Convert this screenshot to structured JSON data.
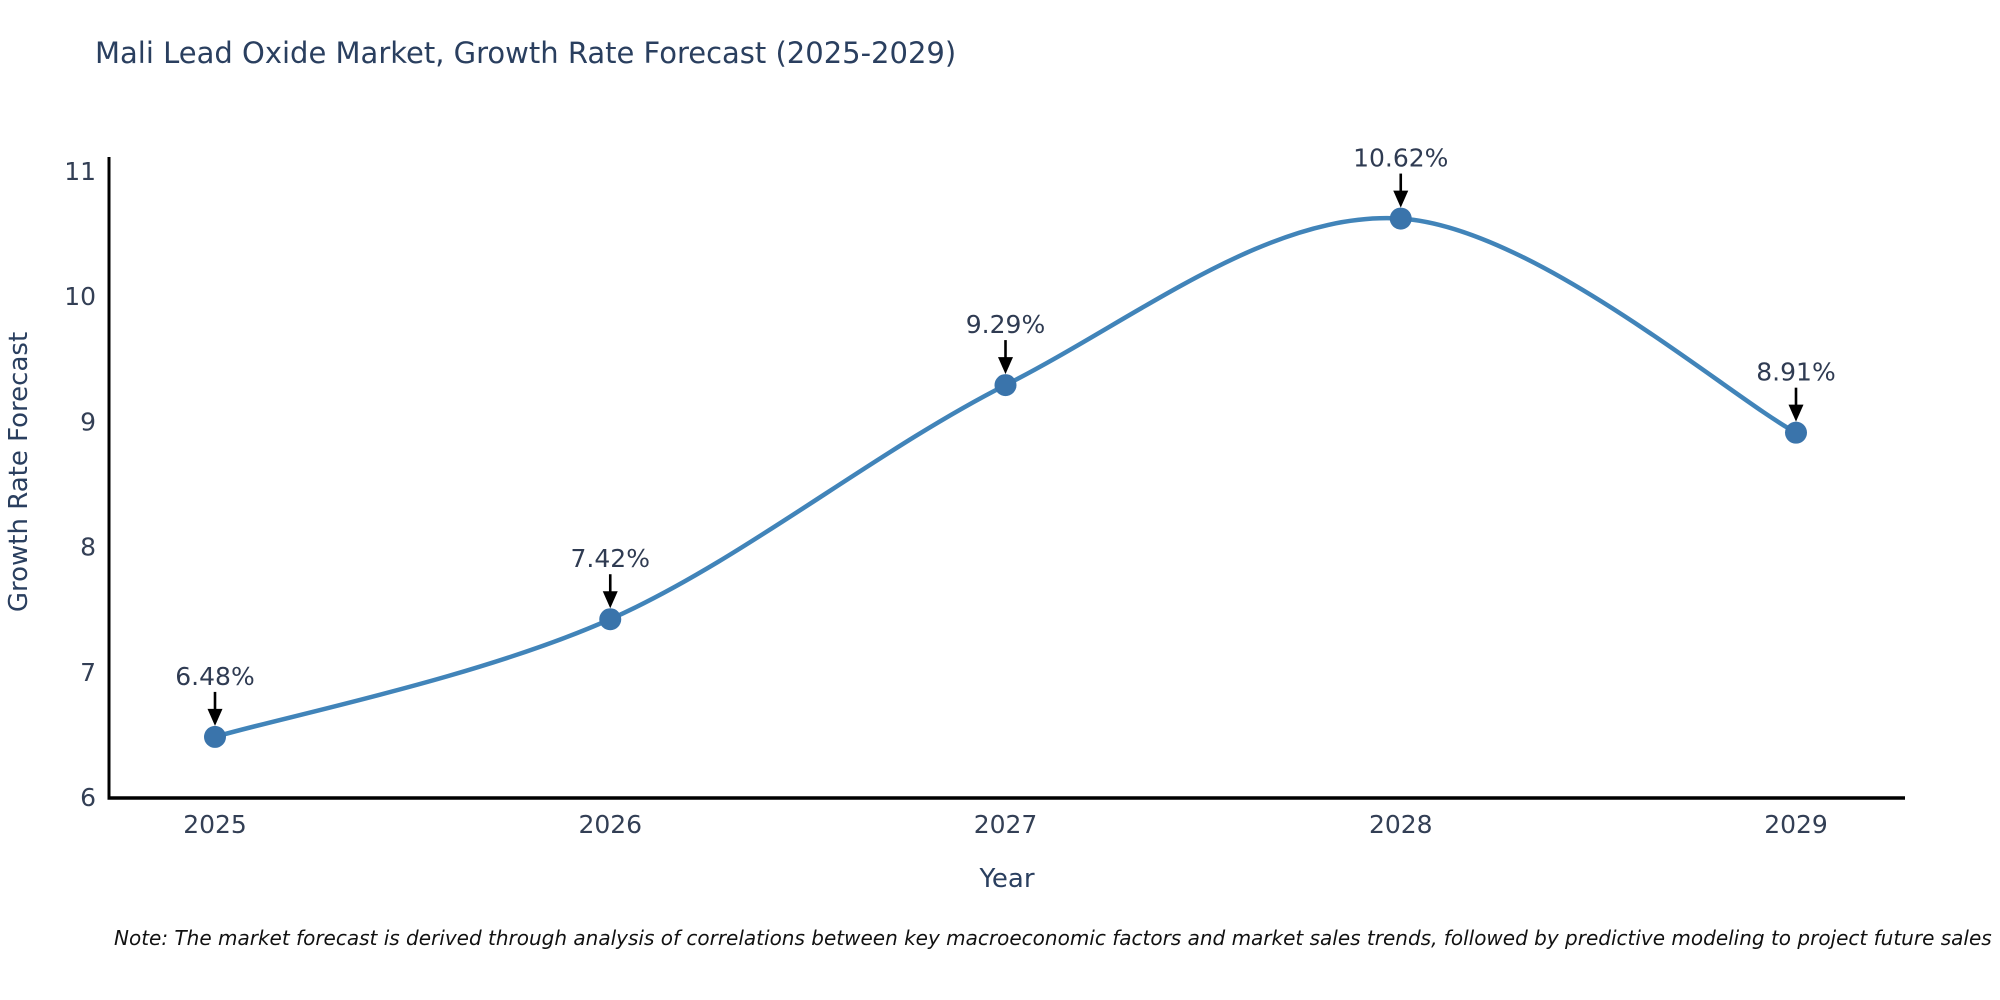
{
  "page": {
    "title": "Mali Lead Oxide Market, Growth Rate Forecast (2025-2029)",
    "note": "Note: The market forecast is derived through analysis of correlations between key macroeconomic factors and market sales trends, followed by predictive modeling to project future sales"
  },
  "chart_data": {
    "type": "line",
    "title": "Mali Lead Oxide Market, Growth Rate Forecast (2025-2029)",
    "x": [
      "2025",
      "2026",
      "2027",
      "2028",
      "2029"
    ],
    "series": [
      {
        "name": "Growth Rate Forecast",
        "values": [
          6.48,
          7.42,
          9.29,
          10.62,
          8.91
        ]
      }
    ],
    "point_labels": [
      "6.48%",
      "7.42%",
      "9.29%",
      "10.62%",
      "8.91%"
    ],
    "xlabel": "Year",
    "ylabel": "Growth Rate Forecast",
    "ylim": [
      6,
      11
    ],
    "yticks": [
      6,
      7,
      8,
      9,
      10,
      11
    ],
    "grid": false,
    "legend": "none",
    "curve": "spline",
    "annotations_arrows": true
  },
  "colors": {
    "line": "#4184b9",
    "marker": "#3a74ab",
    "arrow": "#000000",
    "axis_line": "#000000",
    "tick_text": "#333f55",
    "axis_title_text": "#2a3f5f",
    "annotation_text": "#2f3b52",
    "title_text": "#2a3f5f",
    "background": "#ffffff"
  }
}
